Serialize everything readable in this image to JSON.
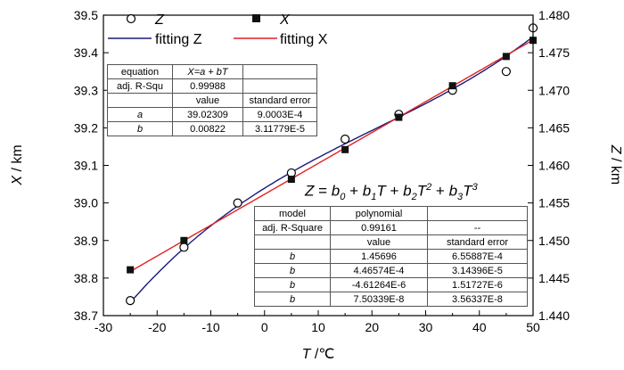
{
  "chart_data": {
    "type": "scatter",
    "xlabel": {
      "var": "T",
      "unit": " /℃"
    },
    "ylabel_left": {
      "var": "X",
      "unit": " / km"
    },
    "ylabel_right": {
      "var": "Z",
      "unit": " / km"
    },
    "xlim": [
      -30,
      50
    ],
    "ylim_left": [
      38.7,
      39.5
    ],
    "ylim_right": [
      1.44,
      1.48
    ],
    "xticks": [
      "-30",
      "-20",
      "-10",
      "0",
      "10",
      "20",
      "30",
      "40",
      "50"
    ],
    "yticks_left": [
      "38.7",
      "38.8",
      "38.9",
      "39.0",
      "39.1",
      "39.2",
      "39.3",
      "39.4",
      "39.5"
    ],
    "yticks_right": [
      "1.440",
      "1.445",
      "1.450",
      "1.455",
      "1.460",
      "1.465",
      "1.470",
      "1.475",
      "1.480"
    ],
    "series": [
      {
        "name": "Z",
        "axis": "right",
        "marker": "open-circle",
        "color": "#000000",
        "x": [
          -25,
          -15,
          -5,
          5,
          15,
          25,
          35,
          45,
          50
        ],
        "y": [
          1.442,
          1.4491,
          1.455,
          1.459,
          1.4635,
          1.4668,
          1.47,
          1.4725,
          1.4783
        ]
      },
      {
        "name": "X",
        "axis": "left",
        "marker": "filled-square",
        "color": "#000000",
        "x": [
          -25,
          -15,
          5,
          15,
          25,
          35,
          45,
          50
        ],
        "y": [
          38.822,
          38.9,
          39.063,
          39.142,
          39.228,
          39.312,
          39.39,
          39.433
        ]
      },
      {
        "name": "fitting Z",
        "axis": "right",
        "type": "line",
        "color": "#1a1a7a",
        "fit": {
          "kind": "cubic",
          "coefficients": [
            1.45696,
            0.000446574,
            -4.61264e-06,
            7.50339e-08
          ]
        }
      },
      {
        "name": "fitting X",
        "axis": "left",
        "type": "line",
        "color": "#e02020",
        "fit": {
          "kind": "linear",
          "a": 39.02309,
          "b": 0.00822
        }
      }
    ],
    "legend": {
      "placement": "top-left",
      "items": [
        {
          "label": "Z",
          "marker": "open-circle"
        },
        {
          "label": "X",
          "marker": "filled-square"
        },
        {
          "label": "fitting Z",
          "marker": "line-blue"
        },
        {
          "label": "fitting X",
          "marker": "line-red"
        }
      ]
    },
    "tables": {
      "x_fit": {
        "equation_label": "equation",
        "equation": "X=a + bT",
        "adj_label": "adj. R-Squ",
        "adj_value": "0.99988",
        "col_value": "value",
        "col_error": "standard error",
        "rows": [
          {
            "param": "a",
            "value": "39.02309",
            "error": "9.0003E-4"
          },
          {
            "param": "b",
            "value": "0.00822",
            "error": "3.11779E-5"
          }
        ]
      },
      "z_fit": {
        "model_label": "model",
        "model": "polynomial",
        "adj_label": "adj. R-Square",
        "adj_value": "0.99161",
        "adj_error": "--",
        "col_value": "value",
        "col_error": "standard error",
        "rows": [
          {
            "param": "b",
            "value": "1.45696",
            "error": "6.55887E-4"
          },
          {
            "param": "b",
            "value": "4.46574E-4",
            "error": "3.14396E-5"
          },
          {
            "param": "b",
            "value": "-4.61264E-6",
            "error": "1.51727E-6"
          },
          {
            "param": "b",
            "value": "7.50339E-8",
            "error": "3.56337E-8"
          }
        ]
      }
    },
    "annotations": {
      "z_equation": {
        "lhs": "Z",
        "eq": " = ",
        "b0": "b",
        "s0": "0",
        "plus": " + ",
        "b1": "b",
        "s1": "1",
        "t1": "T",
        "b2": "b",
        "s2": "2",
        "t2": "T",
        "p2": "2",
        "b3": "b",
        "s3": "3",
        "t3": "T",
        "p3": "3"
      }
    }
  }
}
